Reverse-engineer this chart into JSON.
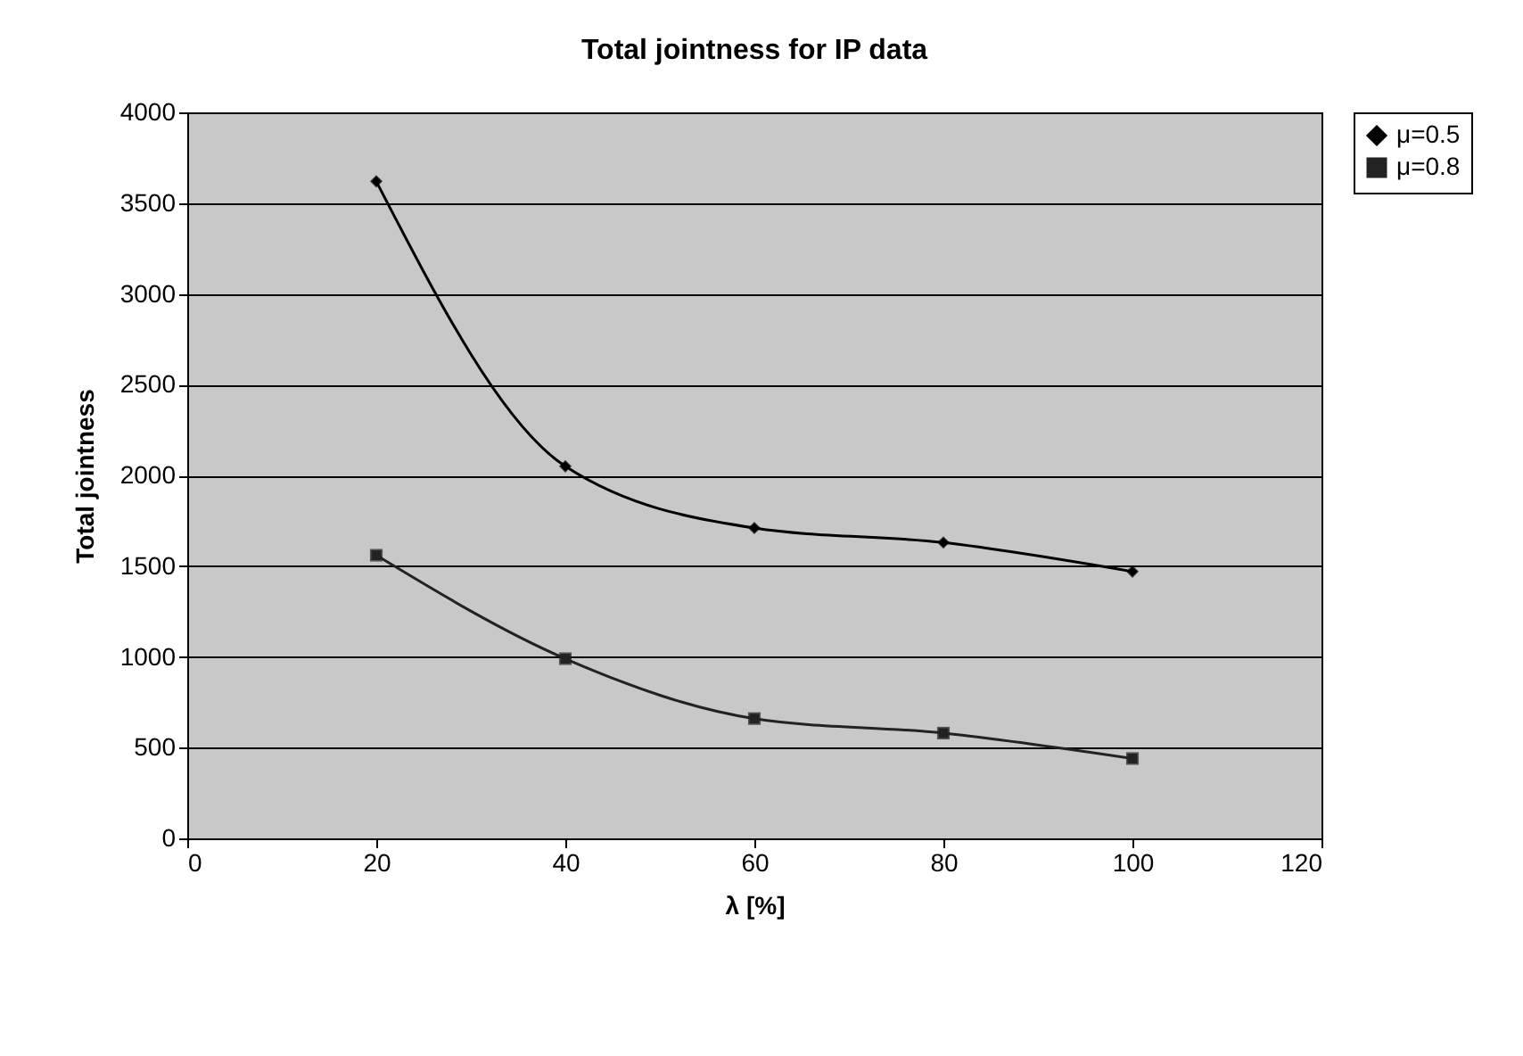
{
  "chart_data": {
    "type": "line",
    "title": "Total jointness for IP data",
    "xlabel": "λ [%]",
    "ylabel": "Total jointness",
    "x": [
      20,
      40,
      60,
      80,
      100
    ],
    "series": [
      {
        "name": "μ=0.5",
        "color": "#000000",
        "marker": "diamond",
        "values": [
          3620,
          2050,
          1710,
          1630,
          1470
        ]
      },
      {
        "name": "μ=0.8",
        "color": "#222222",
        "marker": "square",
        "values": [
          1560,
          990,
          660,
          580,
          440
        ]
      }
    ],
    "xlim": [
      0,
      120
    ],
    "xticks": [
      0,
      20,
      40,
      60,
      80,
      100,
      120
    ],
    "ylim": [
      0,
      4000
    ],
    "yticks": [
      0,
      500,
      1000,
      1500,
      2000,
      2500,
      3000,
      3500,
      4000
    ],
    "grid": "y",
    "legend": "right"
  }
}
